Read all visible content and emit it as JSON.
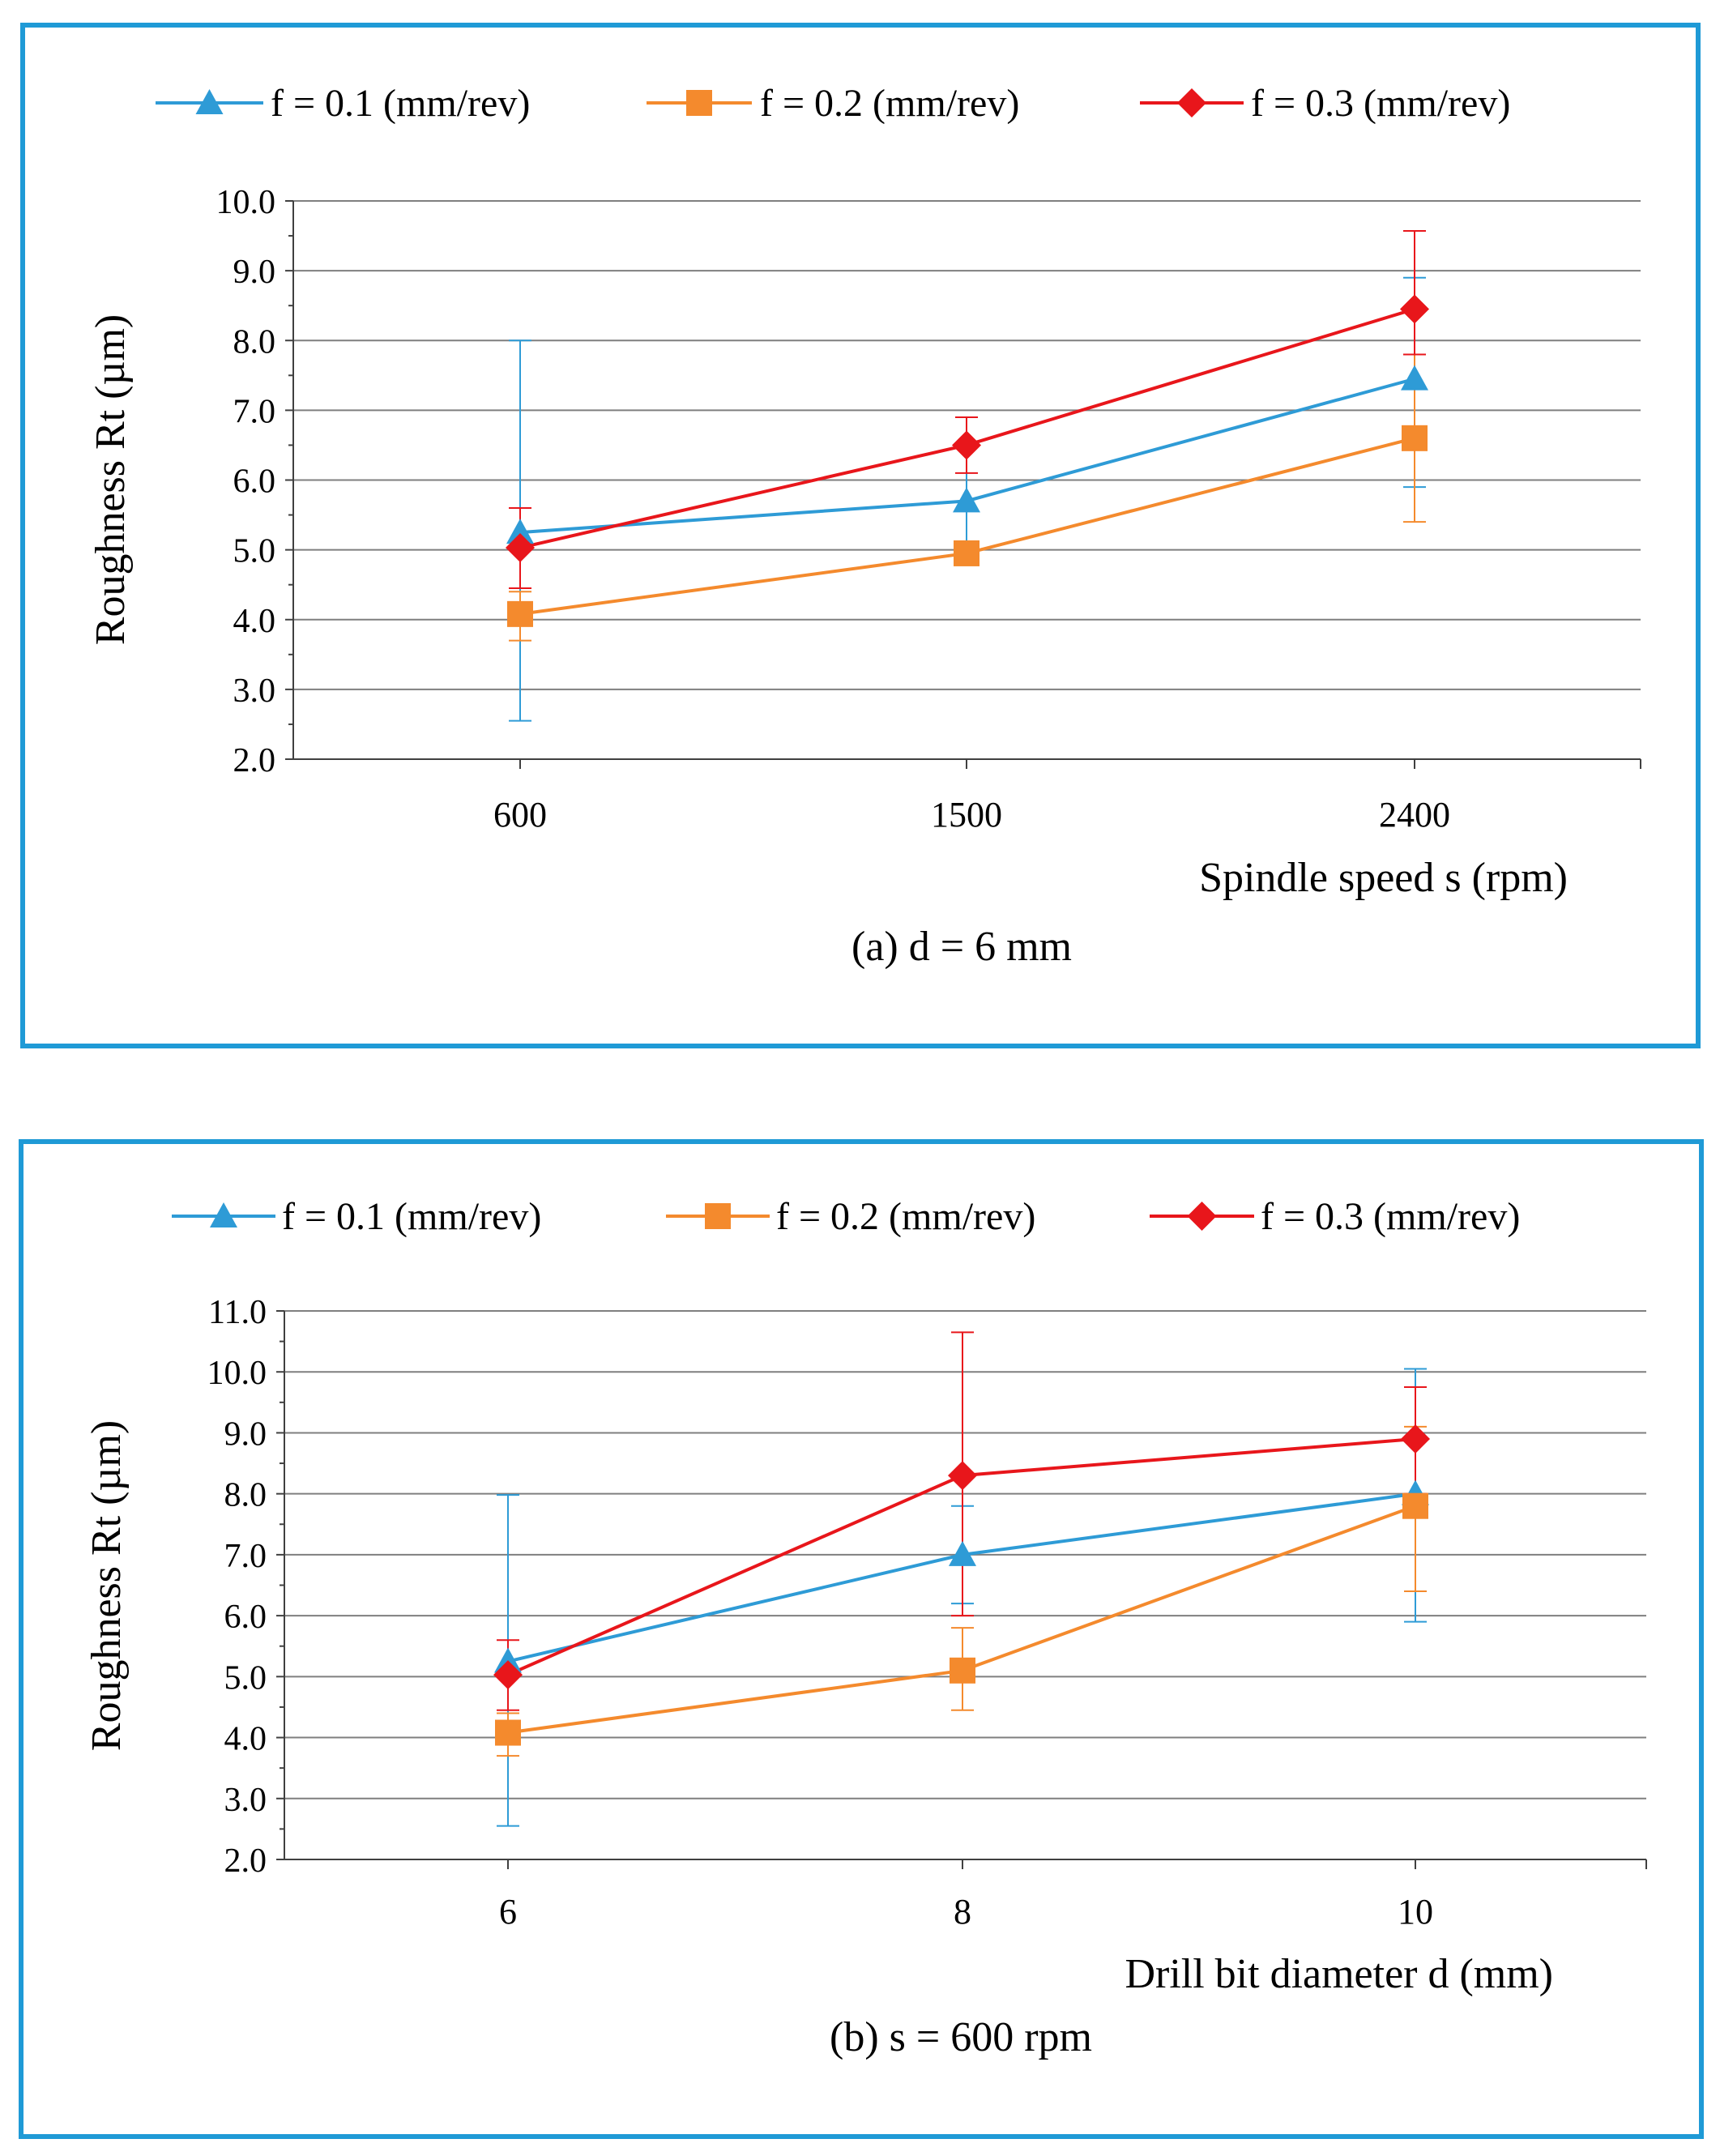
{
  "colors": {
    "border": "#1f9ad6",
    "grid": "#7f7f7f",
    "axis": "#404040"
  },
  "chart_data": [
    {
      "type": "line",
      "caption": "(a) d = 6 mm",
      "xlabel": "Spindle speed s (rpm)",
      "ylabel": "Roughness Rt (µm)",
      "categories": [
        "600",
        "1500",
        "2400"
      ],
      "ylim": [
        2.0,
        10.0
      ],
      "yticks": [
        "2.0",
        "3.0",
        "4.0",
        "5.0",
        "6.0",
        "7.0",
        "8.0",
        "9.0",
        "10.0"
      ],
      "grid": true,
      "legend_position": "top",
      "series": [
        {
          "name": "f = 0.1  (mm/rev)",
          "color": "#2e9bd6",
          "marker": "triangle",
          "values": [
            5.25,
            5.7,
            7.45
          ],
          "err_low": [
            2.55,
            5.0,
            5.9
          ],
          "err_high": [
            8.0,
            6.5,
            8.9
          ]
        },
        {
          "name": "f = 0.2  (mm/rev)",
          "color": "#f48a2d",
          "marker": "square",
          "values": [
            4.08,
            4.95,
            6.6
          ],
          "err_low": [
            3.7,
            4.95,
            5.4
          ],
          "err_high": [
            4.4,
            4.95,
            7.8
          ]
        },
        {
          "name": "f = 0.3  (mm/rev)",
          "color": "#e8161b",
          "marker": "diamond",
          "values": [
            5.03,
            6.5,
            8.45
          ],
          "err_low": [
            4.45,
            6.1,
            7.8
          ],
          "err_high": [
            5.6,
            6.9,
            9.57
          ]
        }
      ]
    },
    {
      "type": "line",
      "caption": "(b) s = 600 rpm",
      "xlabel": "Drill bit diameter d (mm)",
      "ylabel": "Roughness Rt (µm)",
      "categories": [
        "6",
        "8",
        "10"
      ],
      "ylim": [
        2.0,
        11.0
      ],
      "yticks": [
        "2.0",
        "3.0",
        "4.0",
        "5.0",
        "6.0",
        "7.0",
        "8.0",
        "9.0",
        "10.0",
        "11.0"
      ],
      "grid": true,
      "legend_position": "top",
      "series": [
        {
          "name": "f = 0.1  (mm/rev)",
          "color": "#2e9bd6",
          "marker": "triangle",
          "values": [
            5.25,
            7.0,
            8.0
          ],
          "err_low": [
            2.55,
            6.2,
            5.9
          ],
          "err_high": [
            7.98,
            7.8,
            10.05
          ]
        },
        {
          "name": "f = 0.2 (mm/rev)",
          "color": "#f48a2d",
          "marker": "square",
          "values": [
            4.08,
            5.1,
            7.8
          ],
          "err_low": [
            3.7,
            4.45,
            6.4
          ],
          "err_high": [
            4.4,
            5.8,
            9.1
          ]
        },
        {
          "name": "f = 0.3 (mm/rev)",
          "color": "#e8161b",
          "marker": "diamond",
          "values": [
            5.03,
            8.3,
            8.9
          ],
          "err_low": [
            4.45,
            6.0,
            8.0
          ],
          "err_high": [
            5.6,
            10.65,
            9.75
          ]
        }
      ]
    }
  ]
}
